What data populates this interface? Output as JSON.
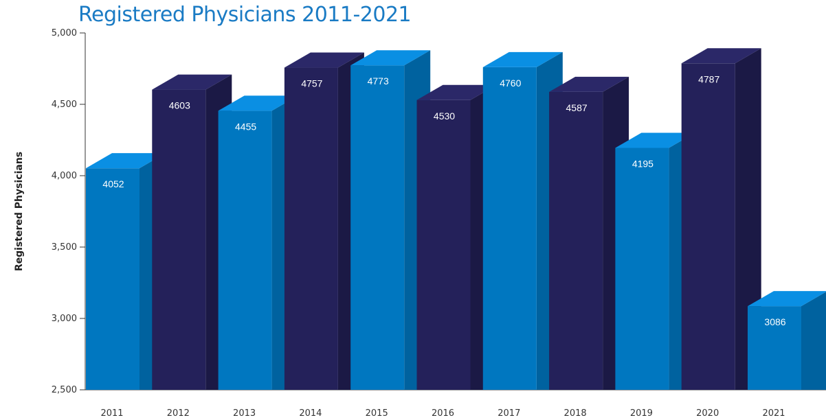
{
  "chart_data": {
    "type": "bar",
    "title": "Registered Physicians 2011-2021",
    "xlabel": "",
    "ylabel": "Registered Physicians",
    "categories": [
      "2011",
      "2012",
      "2013",
      "2014",
      "2015",
      "2016",
      "2017",
      "2018",
      "2019",
      "2020",
      "2021"
    ],
    "values": [
      4052,
      4603,
      4455,
      4757,
      4773,
      4530,
      4760,
      4587,
      4195,
      4787,
      3086
    ],
    "data_labels": [
      "4052",
      "4603",
      "4455",
      "4757",
      "4773",
      "4530",
      "4760",
      "4587",
      "4195",
      "4787",
      "3086"
    ],
    "ylim": [
      2500,
      5000
    ],
    "yticks": [
      2500,
      3000,
      3500,
      4000,
      4500,
      5000
    ],
    "ytick_labels": [
      "2,500",
      "3,000",
      "3,500",
      "4,000",
      "4,500",
      "5,000"
    ],
    "grid": false,
    "style": "3d",
    "colors": {
      "light_front": "#0077c0",
      "light_top": "#0a8fe3",
      "light_side": "#00629f",
      "dark_front": "#24215a",
      "dark_top": "#2b2868",
      "dark_side": "#1b1945",
      "axis": "#333333"
    },
    "bar_color_pattern": [
      "light",
      "dark",
      "light",
      "dark",
      "light",
      "dark",
      "light",
      "dark",
      "light",
      "dark",
      "light"
    ]
  }
}
